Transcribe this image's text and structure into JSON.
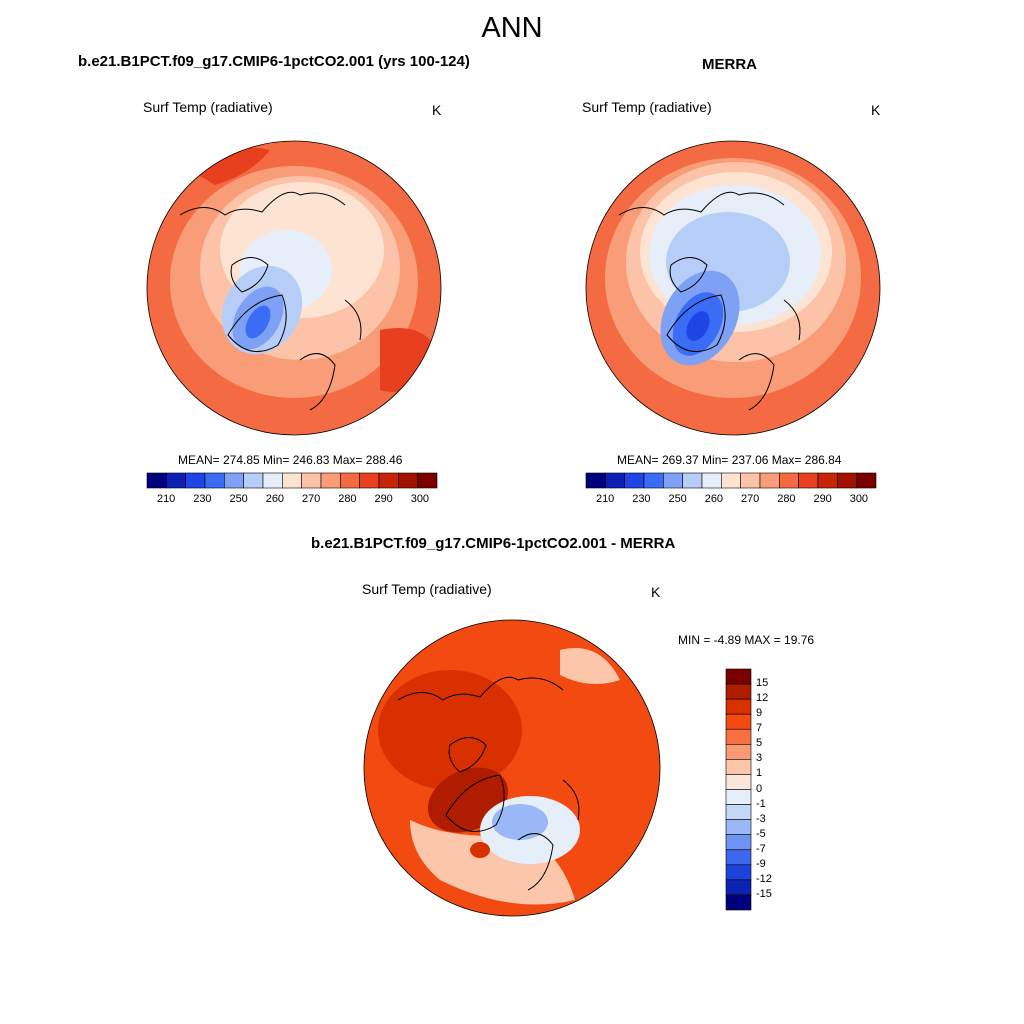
{
  "figure": {
    "title": "ANN"
  },
  "panels": [
    {
      "title": "b.e21.B1PCT.f09_g17.CMIP6-1pctCO2.001 (yrs 100-124)",
      "variable": "Surf Temp (radiative)",
      "units": "K",
      "stats": "MEAN= 274.85  Min= 246.83  Max= 288.46"
    },
    {
      "title": "MERRA",
      "variable": "Surf Temp (radiative)",
      "units": "K",
      "stats": "MEAN= 269.37  Min= 237.06  Max= 286.84"
    },
    {
      "title": "b.e21.B1PCT.f09_g17.CMIP6-1pctCO2.001 - MERRA",
      "variable": "Surf Temp (radiative)",
      "units": "K",
      "stats": "MIN =  -4.89 MAX =  19.76"
    }
  ],
  "colorbar_abs": {
    "labels": [
      "210",
      "230",
      "250",
      "260",
      "270",
      "280",
      "290",
      "300"
    ],
    "colors": [
      "#00007d",
      "#0d1fb4",
      "#1e46e6",
      "#3b6cf5",
      "#7ea0f5",
      "#b6cdf7",
      "#e6eefa",
      "#fde3d2",
      "#fcc3a8",
      "#f99c78",
      "#f46b43",
      "#e8401e",
      "#c82408",
      "#a11200",
      "#7a0000"
    ]
  },
  "colorbar_diff": {
    "labels": [
      "15",
      "12",
      "9",
      "7",
      "5",
      "3",
      "1",
      "0",
      "-1",
      "-3",
      "-5",
      "-7",
      "-9",
      "-12",
      "-15"
    ],
    "colors": [
      "#7a0000",
      "#b01c00",
      "#d83000",
      "#f24a10",
      "#f77040",
      "#f99a72",
      "#fcc6aa",
      "#fde6da",
      "#e6eefa",
      "#c4d8f7",
      "#9ab8f5",
      "#6f93f2",
      "#3d67ed",
      "#1c44dd",
      "#0c23b0",
      "#00007d"
    ]
  }
}
